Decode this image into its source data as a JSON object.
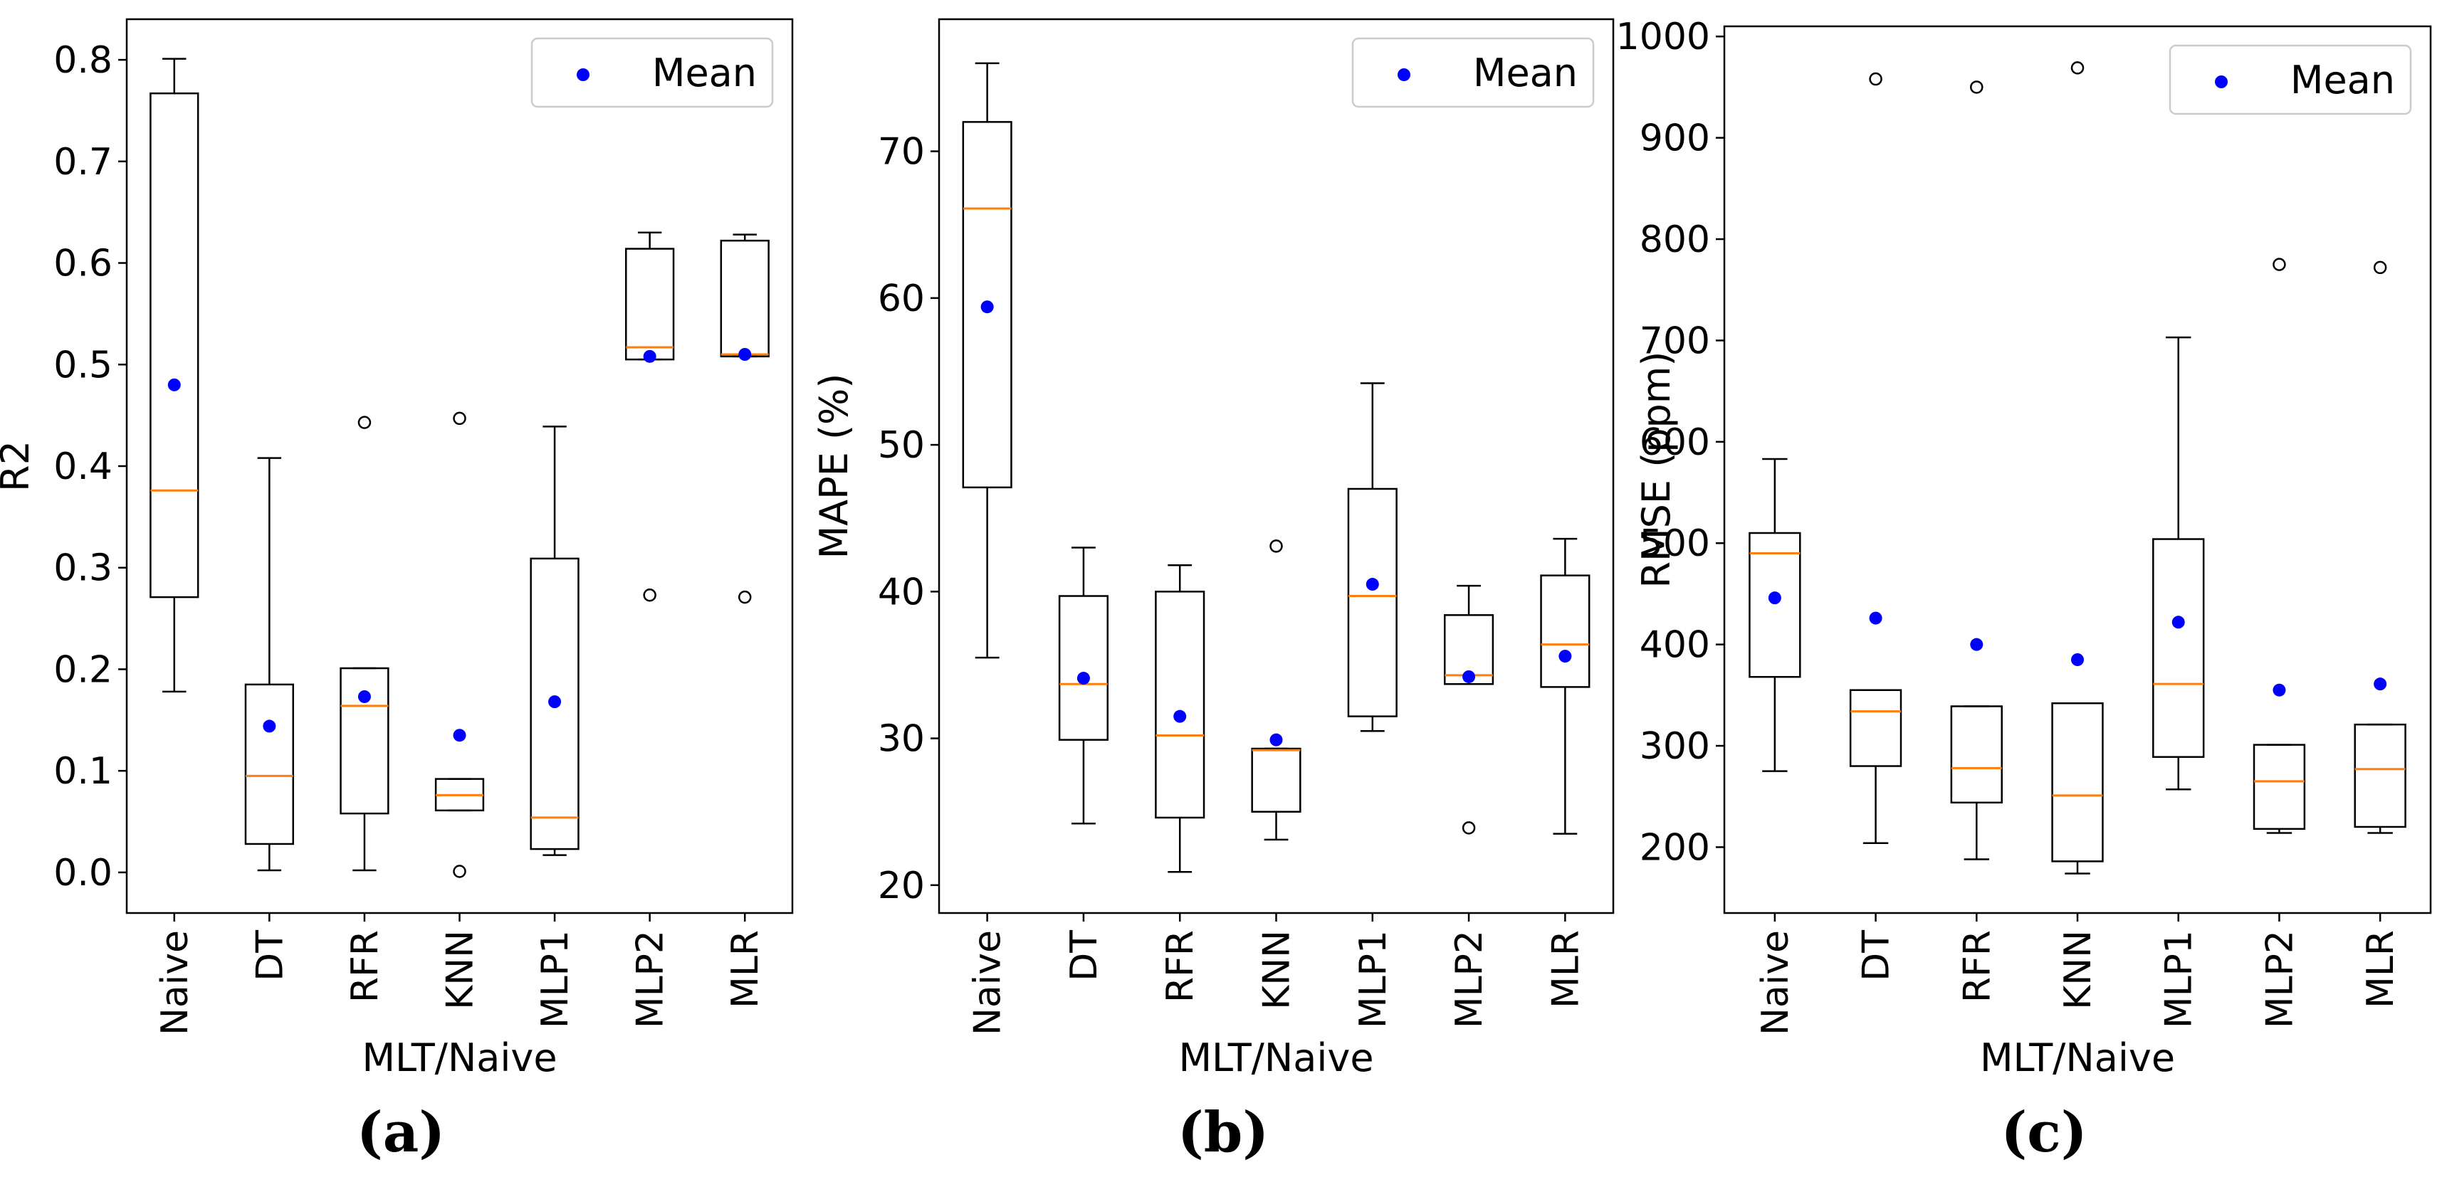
{
  "figure_captions": [
    "(a)",
    "(b)",
    "(c)"
  ],
  "chart_data": [
    {
      "type": "boxplot",
      "caption": "(a)",
      "xlabel": "MLT/Naive",
      "ylabel": "R2",
      "categories": [
        "Naive",
        "DT",
        "RFR",
        "KNN",
        "MLP1",
        "MLP2",
        "MLR"
      ],
      "ylim": [
        -0.04,
        0.84
      ],
      "yticks": [
        0.0,
        0.1,
        0.2,
        0.3,
        0.4,
        0.5,
        0.6,
        0.7,
        0.8
      ],
      "ytick_labels": [
        "0.0",
        "0.1",
        "0.2",
        "0.3",
        "0.4",
        "0.5",
        "0.6",
        "0.7",
        "0.8"
      ],
      "legend": {
        "label": "Mean",
        "position": "top-right"
      },
      "boxes": [
        {
          "whislo": 0.178,
          "q1": 0.271,
          "med": 0.376,
          "q3": 0.767,
          "whishi": 0.801,
          "mean": 0.48,
          "fliers": []
        },
        {
          "whislo": 0.002,
          "q1": 0.028,
          "med": 0.095,
          "q3": 0.185,
          "whishi": 0.408,
          "mean": 0.144,
          "fliers": []
        },
        {
          "whislo": 0.002,
          "q1": 0.058,
          "med": 0.164,
          "q3": 0.201,
          "whishi": 0.201,
          "mean": 0.173,
          "fliers": [
            0.443
          ]
        },
        {
          "whislo": 0.061,
          "q1": 0.061,
          "med": 0.076,
          "q3": 0.092,
          "whishi": 0.092,
          "mean": 0.135,
          "fliers": [
            0.447,
            0.001
          ]
        },
        {
          "whislo": 0.017,
          "q1": 0.023,
          "med": 0.054,
          "q3": 0.309,
          "whishi": 0.439,
          "mean": 0.168,
          "fliers": []
        },
        {
          "whislo": 0.505,
          "q1": 0.505,
          "med": 0.517,
          "q3": 0.614,
          "whishi": 0.63,
          "mean": 0.508,
          "fliers": [
            0.273
          ]
        },
        {
          "whislo": 0.508,
          "q1": 0.508,
          "med": 0.51,
          "q3": 0.622,
          "whishi": 0.628,
          "mean": 0.51,
          "fliers": [
            0.271
          ]
        }
      ]
    },
    {
      "type": "boxplot",
      "caption": "(b)",
      "xlabel": "MLT/Naive",
      "ylabel": "MAPE (%)",
      "categories": [
        "Naive",
        "DT",
        "RFR",
        "KNN",
        "MLP1",
        "MLP2",
        "MLR"
      ],
      "ylim": [
        18.1,
        79.0
      ],
      "yticks": [
        20,
        30,
        40,
        50,
        60,
        70
      ],
      "ytick_labels": [
        "20",
        "30",
        "40",
        "50",
        "60",
        "70"
      ],
      "legend": {
        "label": "Mean",
        "position": "top-right"
      },
      "boxes": [
        {
          "whislo": 35.5,
          "q1": 47.1,
          "med": 66.1,
          "q3": 72.0,
          "whishi": 76.0,
          "mean": 59.4,
          "fliers": []
        },
        {
          "whislo": 24.2,
          "q1": 29.9,
          "med": 33.7,
          "q3": 39.7,
          "whishi": 43.0,
          "mean": 34.1,
          "fliers": []
        },
        {
          "whislo": 20.9,
          "q1": 24.6,
          "med": 30.2,
          "q3": 40.0,
          "whishi": 41.8,
          "mean": 31.5,
          "fliers": []
        },
        {
          "whislo": 23.1,
          "q1": 25.0,
          "med": 29.2,
          "q3": 29.3,
          "whishi": 29.3,
          "mean": 29.9,
          "fliers": [
            43.1
          ]
        },
        {
          "whislo": 30.5,
          "q1": 31.5,
          "med": 39.7,
          "q3": 47.0,
          "whishi": 54.2,
          "mean": 40.5,
          "fliers": []
        },
        {
          "whislo": 33.7,
          "q1": 33.7,
          "med": 34.3,
          "q3": 38.4,
          "whishi": 40.4,
          "mean": 34.2,
          "fliers": [
            23.9
          ]
        },
        {
          "whislo": 23.5,
          "q1": 33.5,
          "med": 36.4,
          "q3": 41.1,
          "whishi": 43.6,
          "mean": 35.6,
          "fliers": []
        }
      ]
    },
    {
      "type": "boxplot",
      "caption": "(c)",
      "xlabel": "MLT/Naive",
      "ylabel": "RMSE (ppm)",
      "categories": [
        "Naive",
        "DT",
        "RFR",
        "KNN",
        "MLP1",
        "MLP2",
        "MLR"
      ],
      "ylim": [
        135,
        1010
      ],
      "yticks": [
        200,
        300,
        400,
        500,
        600,
        700,
        800,
        900,
        1000
      ],
      "ytick_labels": [
        "200",
        "300",
        "400",
        "500",
        "600",
        "700",
        "800",
        "900",
        "1000"
      ],
      "legend": {
        "label": "Mean",
        "position": "top-right"
      },
      "boxes": [
        {
          "whislo": 275,
          "q1": 368,
          "med": 490,
          "q3": 510,
          "whishi": 583,
          "mean": 446,
          "fliers": []
        },
        {
          "whislo": 204,
          "q1": 280,
          "med": 334,
          "q3": 355,
          "whishi": 355,
          "mean": 426,
          "fliers": [
            958
          ]
        },
        {
          "whislo": 188,
          "q1": 244,
          "med": 278,
          "q3": 339,
          "whishi": 339,
          "mean": 400,
          "fliers": [
            950
          ]
        },
        {
          "whislo": 174,
          "q1": 186,
          "med": 251,
          "q3": 342,
          "whishi": 342,
          "mean": 385,
          "fliers": [
            969
          ]
        },
        {
          "whislo": 257,
          "q1": 289,
          "med": 361,
          "q3": 504,
          "whishi": 703,
          "mean": 422,
          "fliers": []
        },
        {
          "whislo": 214,
          "q1": 218,
          "med": 265,
          "q3": 301,
          "whishi": 301,
          "mean": 355,
          "fliers": [
            775
          ]
        },
        {
          "whislo": 214,
          "q1": 220,
          "med": 277,
          "q3": 321,
          "whishi": 321,
          "mean": 361,
          "fliers": [
            772
          ]
        }
      ]
    }
  ]
}
